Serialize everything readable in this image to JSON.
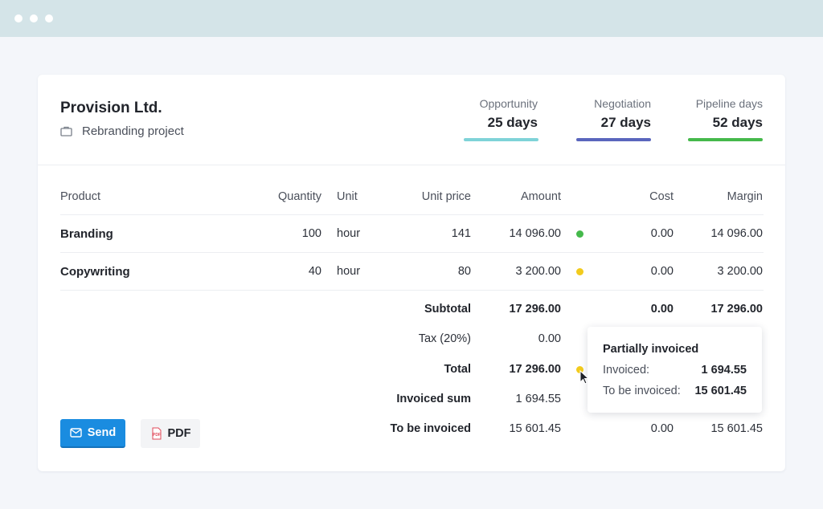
{
  "company": "Provision Ltd.",
  "project": "Rebranding project",
  "stats": [
    {
      "label": "Opportunity",
      "value": "25 days",
      "color": "#7fd3d8"
    },
    {
      "label": "Negotiation",
      "value": "27 days",
      "color": "#5a66bd"
    },
    {
      "label": "Pipeline days",
      "value": "52 days",
      "color": "#45b94b"
    }
  ],
  "table": {
    "headers": {
      "product": "Product",
      "quantity": "Quantity",
      "unit": "Unit",
      "unit_price": "Unit price",
      "amount": "Amount",
      "cost": "Cost",
      "margin": "Margin"
    },
    "rows": [
      {
        "product": "Branding",
        "quantity": "100",
        "unit": "hour",
        "unit_price": "141",
        "amount": "14 096.00",
        "status_color": "#45b94b",
        "cost": "0.00",
        "margin": "14 096.00"
      },
      {
        "product": "Copywriting",
        "quantity": "40",
        "unit": "hour",
        "unit_price": "80",
        "amount": "3 200.00",
        "status_color": "#f2cb1d",
        "cost": "0.00",
        "margin": "3 200.00"
      }
    ]
  },
  "summary": {
    "subtotal": {
      "label": "Subtotal",
      "amount": "17 296.00",
      "cost": "0.00",
      "margin": "17 296.00"
    },
    "tax": {
      "label": "Tax (20%)",
      "amount": "0.00"
    },
    "total": {
      "label": "Total",
      "amount": "17 296.00",
      "status_color": "#f2cb1d"
    },
    "invoiced_sum": {
      "label": "Invoiced sum",
      "amount": "1 694.55"
    },
    "to_be_invoiced": {
      "label": "To be invoiced",
      "amount": "15 601.45",
      "cost": "0.00",
      "margin": "15 601.45"
    }
  },
  "buttons": {
    "send": "Send",
    "pdf": "PDF",
    "pdf_icon_text": "PDF"
  },
  "tooltip": {
    "title": "Partially invoiced",
    "invoiced_label": "Invoiced:",
    "invoiced_value": "1 694.55",
    "to_be_invoiced_label": "To be invoiced:",
    "to_be_invoiced_value": "15 601.45"
  },
  "colors": {
    "accent": "#1a8ce0",
    "titlebar": "#d4e4e8"
  }
}
